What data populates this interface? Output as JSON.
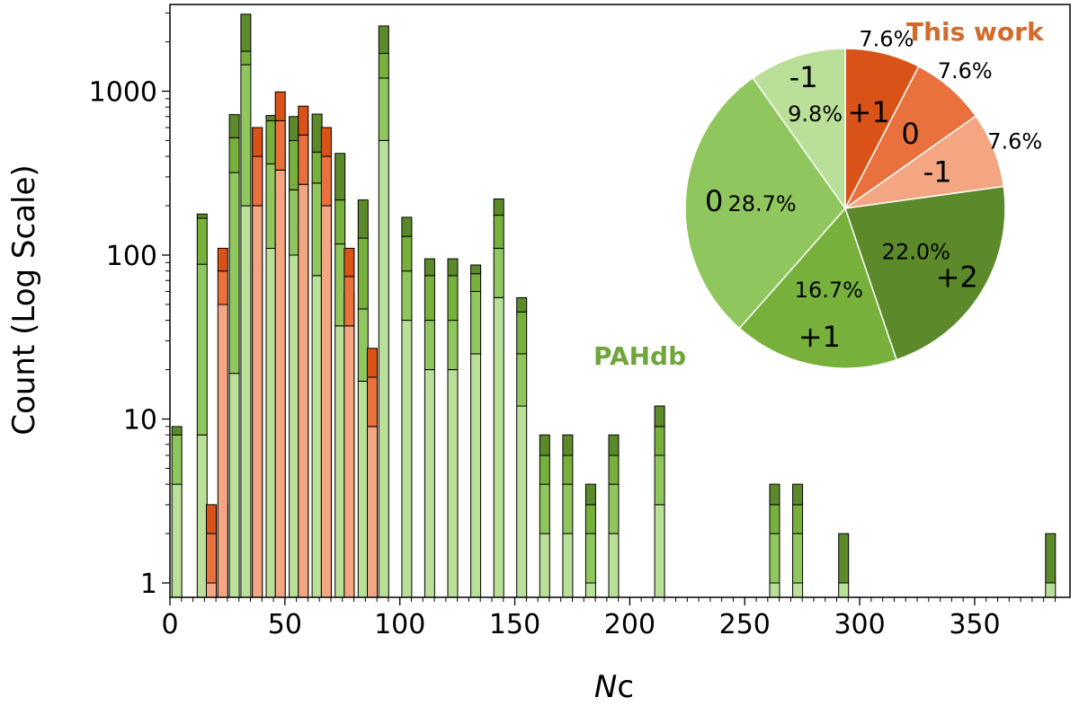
{
  "chart_data": [
    {
      "type": "bar",
      "stacked": true,
      "xlabel": "Nc",
      "ylabel": "Count (Log Scale)",
      "y_scale": "log",
      "xlim": [
        0,
        388
      ],
      "ylim": [
        0.8,
        3000
      ],
      "x_ticks": [
        "0",
        "50",
        "100",
        "150",
        "200",
        "250",
        "300",
        "350"
      ],
      "y_ticks": [
        "1",
        "10",
        "100",
        "1000"
      ],
      "colors": {
        "pahdb_charge_-1": "#b9df98",
        "pahdb_charge_0": "#8fc65d",
        "pahdb_charge_+1": "#77b13b",
        "pahdb_charge_+2": "#5c8a2a",
        "this_work_charge_-1": "#f4a582",
        "this_work_charge_0": "#e9713d",
        "this_work_charge_+1": "#d95319",
        "edge": "#000000"
      },
      "stack_order": [
        "-1",
        "0",
        "+1",
        "+2"
      ],
      "series": [
        {
          "name": "PAHdb",
          "bars": [
            {
              "x": 3,
              "segments": [
                4,
                4,
                0,
                1
              ]
            },
            {
              "x": 14,
              "segments": [
                8,
                80,
                80,
                10
              ]
            },
            {
              "x": 23,
              "segments": [
                1,
                1,
                1,
                0
              ]
            },
            {
              "x": 28,
              "segments": [
                19,
                300,
                200,
                200
              ]
            },
            {
              "x": 33,
              "segments": [
                200,
                1250,
                300,
                1200
              ]
            },
            {
              "x": 38,
              "segments": [
                80,
                120,
                400,
                0
              ]
            },
            {
              "x": 44,
              "segments": [
                110,
                250,
                300,
                50
              ]
            },
            {
              "x": 48,
              "segments": [
                220,
                180,
                250,
                0
              ]
            },
            {
              "x": 54,
              "segments": [
                100,
                150,
                250,
                200
              ]
            },
            {
              "x": 58,
              "segments": [
                150,
                200,
                300,
                0
              ]
            },
            {
              "x": 64,
              "segments": [
                75,
                200,
                150,
                300
              ]
            },
            {
              "x": 68,
              "segments": [
                70,
                40,
                100,
                0
              ]
            },
            {
              "x": 74,
              "segments": [
                37,
                80,
                100,
                200
              ]
            },
            {
              "x": 78,
              "segments": [
                30,
                20,
                10,
                0
              ]
            },
            {
              "x": 84,
              "segments": [
                17,
                30,
                80,
                90
              ]
            },
            {
              "x": 88,
              "segments": [
                3,
                10,
                4,
                0
              ]
            },
            {
              "x": 93,
              "segments": [
                500,
                700,
                500,
                800
              ]
            },
            {
              "x": 103,
              "segments": [
                40,
                40,
                50,
                40
              ]
            },
            {
              "x": 113,
              "segments": [
                20,
                20,
                35,
                20
              ]
            },
            {
              "x": 123,
              "segments": [
                20,
                20,
                35,
                20
              ]
            },
            {
              "x": 133,
              "segments": [
                25,
                35,
                17,
                10
              ]
            },
            {
              "x": 143,
              "segments": [
                55,
                55,
                65,
                45
              ]
            },
            {
              "x": 153,
              "segments": [
                12,
                13,
                20,
                10
              ]
            },
            {
              "x": 163,
              "segments": [
                2,
                2,
                2,
                2
              ]
            },
            {
              "x": 173,
              "segments": [
                2,
                2,
                2,
                2
              ]
            },
            {
              "x": 183,
              "segments": [
                1,
                1,
                1,
                1
              ]
            },
            {
              "x": 193,
              "segments": [
                2,
                2,
                2,
                2
              ]
            },
            {
              "x": 213,
              "segments": [
                3,
                3,
                3,
                3
              ]
            },
            {
              "x": 263,
              "segments": [
                1,
                1,
                1,
                1
              ]
            },
            {
              "x": 273,
              "segments": [
                1,
                1,
                1,
                1
              ]
            },
            {
              "x": 293,
              "segments": [
                1,
                0,
                0,
                1
              ]
            },
            {
              "x": 383,
              "segments": [
                1,
                0,
                0,
                1
              ]
            }
          ]
        },
        {
          "name": "This work",
          "bars": [
            {
              "x": 18,
              "segments": [
                1,
                1,
                1
              ]
            },
            {
              "x": 23,
              "segments": [
                50,
                30,
                30
              ]
            },
            {
              "x": 38,
              "segments": [
                200,
                200,
                200
              ]
            },
            {
              "x": 48,
              "segments": [
                330,
                330,
                330
              ]
            },
            {
              "x": 58,
              "segments": [
                270,
                270,
                270
              ]
            },
            {
              "x": 68,
              "segments": [
                200,
                200,
                200
              ]
            },
            {
              "x": 78,
              "segments": [
                37,
                37,
                36
              ]
            },
            {
              "x": 88,
              "segments": [
                9,
                9,
                9
              ]
            }
          ]
        }
      ]
    },
    {
      "type": "pie",
      "legend": [
        {
          "text": "This work",
          "color": "#d46a2a"
        },
        {
          "text": "PAHdb",
          "color": "#6fa53c"
        }
      ],
      "slices": [
        {
          "group": "This work",
          "charge": "+1",
          "percent": 7.6,
          "label": "7.6%",
          "color": "#d95319"
        },
        {
          "group": "This work",
          "charge": "0",
          "percent": 7.6,
          "label": "7.6%",
          "color": "#e9713d"
        },
        {
          "group": "This work",
          "charge": "-1",
          "percent": 7.6,
          "label": "7.6%",
          "color": "#f4a582"
        },
        {
          "group": "PAHdb",
          "charge": "+2",
          "percent": 22.0,
          "label": "22.0%",
          "color": "#5c8a2a"
        },
        {
          "group": "PAHdb",
          "charge": "+1",
          "percent": 16.7,
          "label": "16.7%",
          "color": "#77b13b"
        },
        {
          "group": "PAHdb",
          "charge": "0",
          "percent": 28.7,
          "label": "28.7%",
          "color": "#8fc65d"
        },
        {
          "group": "PAHdb",
          "charge": "-1",
          "percent": 9.8,
          "label": "9.8%",
          "color": "#b9df98"
        }
      ]
    }
  ]
}
